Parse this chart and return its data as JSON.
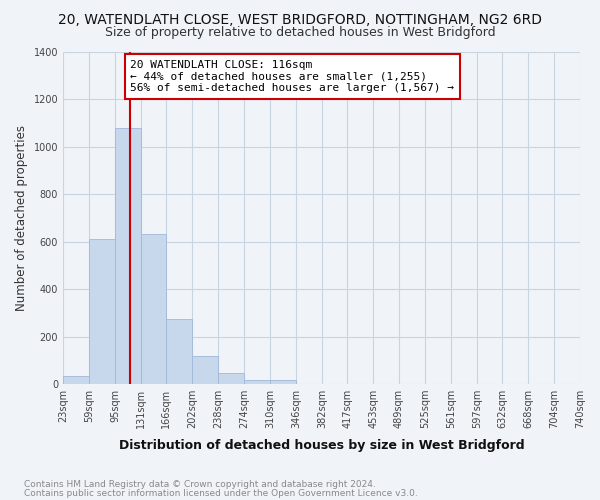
{
  "title": "20, WATENDLATH CLOSE, WEST BRIDGFORD, NOTTINGHAM, NG2 6RD",
  "subtitle": "Size of property relative to detached houses in West Bridgford",
  "xlabel": "Distribution of detached houses by size in West Bridgford",
  "ylabel": "Number of detached properties",
  "footnote1": "Contains HM Land Registry data © Crown copyright and database right 2024.",
  "footnote2": "Contains public sector information licensed under the Open Government Licence v3.0.",
  "bar_edges": [
    23,
    59,
    95,
    131,
    166,
    202,
    238,
    274,
    310,
    346,
    382,
    417,
    453,
    489,
    525,
    561,
    597,
    632,
    668,
    704,
    740
  ],
  "bar_heights": [
    35,
    610,
    1080,
    630,
    275,
    120,
    45,
    18,
    18,
    0,
    0,
    0,
    0,
    0,
    0,
    0,
    0,
    0,
    0,
    0
  ],
  "bar_color": "#c8d8ec",
  "bar_edge_color": "#a0b8d8",
  "property_size": 116,
  "vline_color": "#cc0000",
  "annotation_line1": "20 WATENDLATH CLOSE: 116sqm",
  "annotation_line2": "← 44% of detached houses are smaller (1,255)",
  "annotation_line3": "56% of semi-detached houses are larger (1,567) →",
  "annotation_box_color": "#cc0000",
  "annotation_bg_color": "#ffffff",
  "ylim": [
    0,
    1400
  ],
  "yticks": [
    0,
    200,
    400,
    600,
    800,
    1000,
    1200,
    1400
  ],
  "bg_color": "#f0f4f8",
  "plot_bg_color": "#f0f4f8",
  "grid_color": "#c8d4e0",
  "title_fontsize": 10,
  "subtitle_fontsize": 9,
  "xlabel_fontsize": 9,
  "ylabel_fontsize": 8.5,
  "tick_fontsize": 7,
  "annotation_fontsize": 8,
  "footnote_fontsize": 6.5
}
